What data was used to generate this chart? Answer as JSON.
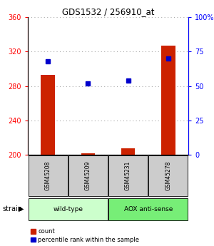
{
  "title": "GDS1532 / 256910_at",
  "samples": [
    "GSM45208",
    "GSM45209",
    "GSM45231",
    "GSM45278"
  ],
  "counts": [
    293,
    202,
    208,
    327
  ],
  "percentiles": [
    68,
    52,
    54,
    70
  ],
  "ylim_left": [
    200,
    360
  ],
  "ylim_right": [
    0,
    100
  ],
  "yticks_left": [
    200,
    240,
    280,
    320,
    360
  ],
  "yticks_right": [
    0,
    25,
    50,
    75,
    100
  ],
  "bar_color": "#cc2200",
  "dot_color": "#0000cc",
  "groups": [
    {
      "label": "wild-type",
      "samples": [
        0,
        1
      ],
      "color": "#ccffcc"
    },
    {
      "label": "AOX anti-sense",
      "samples": [
        2,
        3
      ],
      "color": "#77ee77"
    }
  ],
  "strain_label": "strain",
  "legend_count": "count",
  "legend_percentile": "percentile rank within the sample",
  "bg_color": "#ffffff",
  "bar_width": 0.35,
  "grid_color": "#aaaaaa",
  "sample_box_color": "#cccccc"
}
